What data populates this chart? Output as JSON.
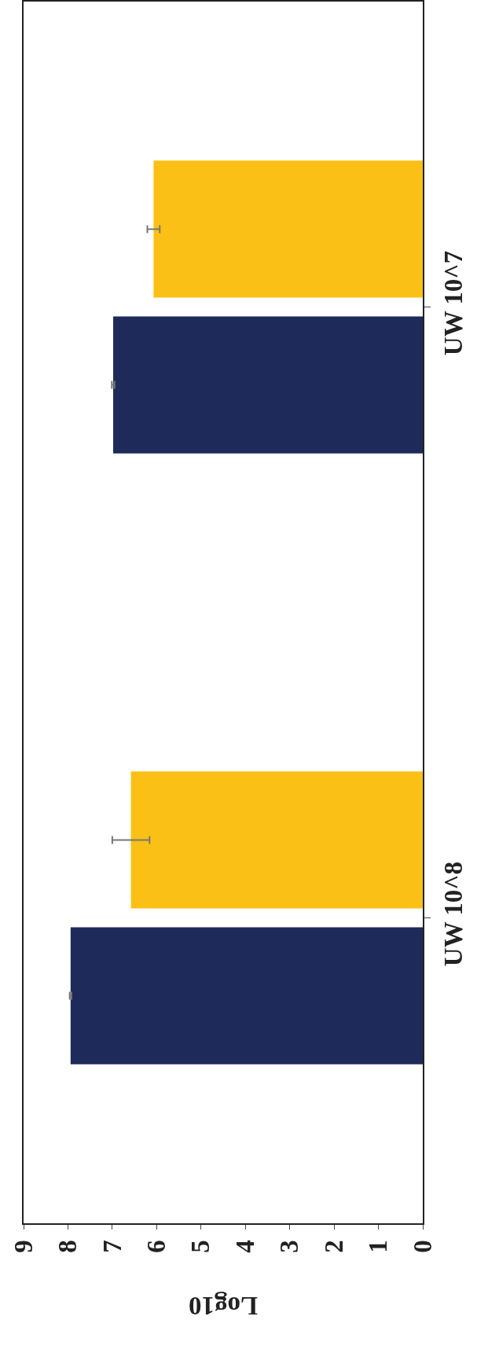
{
  "chart_data": {
    "type": "bar",
    "orientation": "horizontal",
    "xlabel": "Log10",
    "categories": [
      "UW 10^7",
      "UW 10^8"
    ],
    "series": [
      {
        "color": "#1e2a5a",
        "values": [
          6.98,
          7.94
        ],
        "errors": [
          0.03,
          0.02
        ]
      },
      {
        "color": "#fbc015",
        "values": [
          6.07,
          6.58
        ],
        "errors": [
          0.14,
          0.42
        ]
      }
    ],
    "xlim": [
      9,
      0
    ],
    "xticks": [
      0,
      1,
      2,
      3,
      4,
      5,
      6,
      7,
      8,
      9
    ],
    "grid": false
  }
}
